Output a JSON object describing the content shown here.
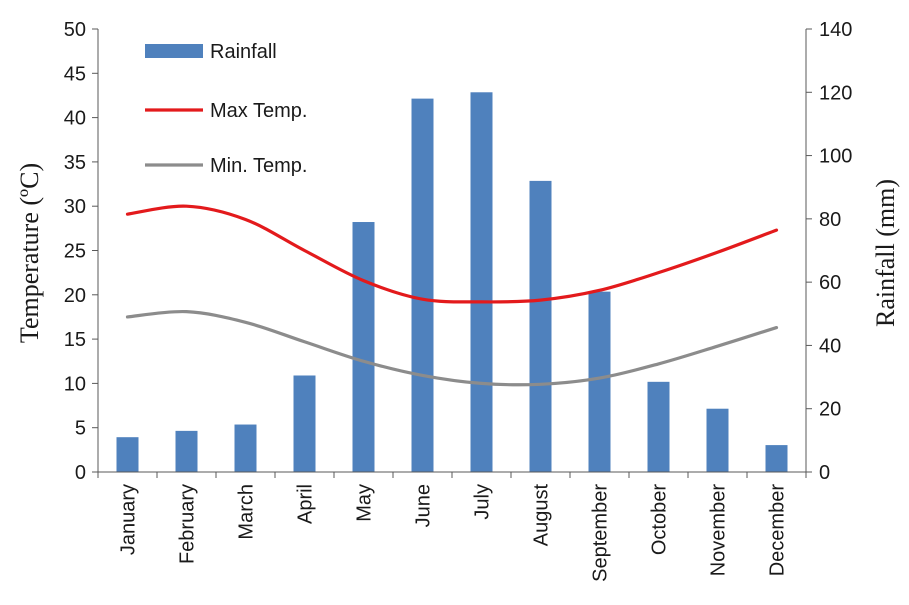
{
  "chart_data": {
    "type": "bar",
    "categories": [
      "January",
      "February",
      "March",
      "April",
      "May",
      "June",
      "July",
      "August",
      "September",
      "October",
      "November",
      "December"
    ],
    "series": [
      {
        "name": "Rainfall",
        "type": "bar",
        "axis": "right",
        "color": "#4f81bd",
        "values": [
          11,
          13,
          15,
          30.5,
          79,
          118,
          120,
          92,
          57,
          28.5,
          20,
          8.5
        ]
      },
      {
        "name": "Max Temp.",
        "type": "line",
        "axis": "left",
        "color": "#e31a1c",
        "values": [
          29.1,
          30.0,
          28.5,
          25.0,
          21.6,
          19.5,
          19.2,
          19.4,
          20.5,
          22.5,
          24.8,
          27.3
        ]
      },
      {
        "name": "Min. Temp.",
        "type": "line",
        "axis": "left",
        "color": "#8c8c8c",
        "values": [
          17.5,
          18.1,
          16.9,
          14.7,
          12.5,
          10.9,
          10.0,
          9.9,
          10.6,
          12.2,
          14.2,
          16.3
        ]
      }
    ],
    "xlabel": "",
    "ylabel": "Temperature (ºC)",
    "ylabel_right": "Rainfall (mm)",
    "ylim": [
      0,
      50
    ],
    "ylim_right": [
      0,
      140
    ],
    "yticks": [
      "0",
      "5",
      "10",
      "15",
      "20",
      "25",
      "30",
      "35",
      "40",
      "45",
      "50"
    ],
    "yticks_right": [
      "0",
      "20",
      "40",
      "60",
      "80",
      "100",
      "120",
      "140"
    ],
    "legend_position": "top-left",
    "grid": false
  }
}
